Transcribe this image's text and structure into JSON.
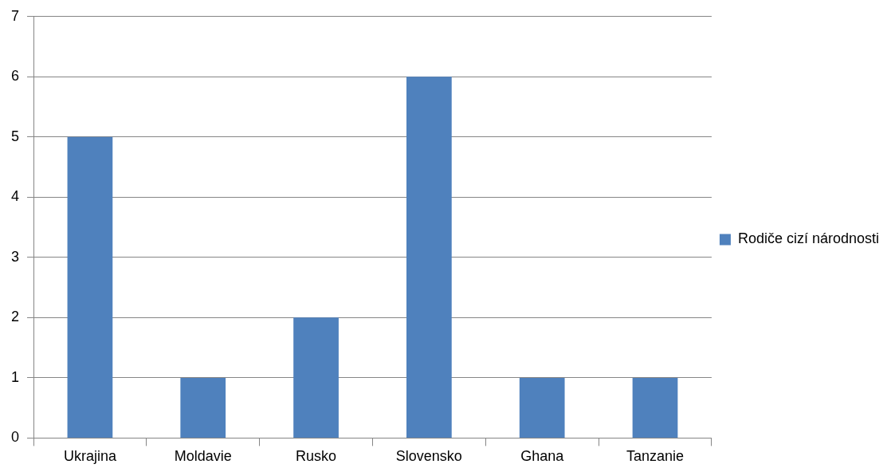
{
  "chart_data": {
    "type": "bar",
    "categories": [
      "Ukrajina",
      "Moldavie",
      "Rusko",
      "Slovensko",
      "Ghana",
      "Tanzanie"
    ],
    "series": [
      {
        "name": "Rodiče cizí národnosti",
        "color": "#4f81bd",
        "values": [
          5,
          1,
          2,
          6,
          1,
          1
        ]
      }
    ],
    "ylim": [
      0,
      7
    ],
    "yticks": [
      0,
      1,
      2,
      3,
      4,
      5,
      6,
      7
    ],
    "grid": "y",
    "legend": "right"
  }
}
